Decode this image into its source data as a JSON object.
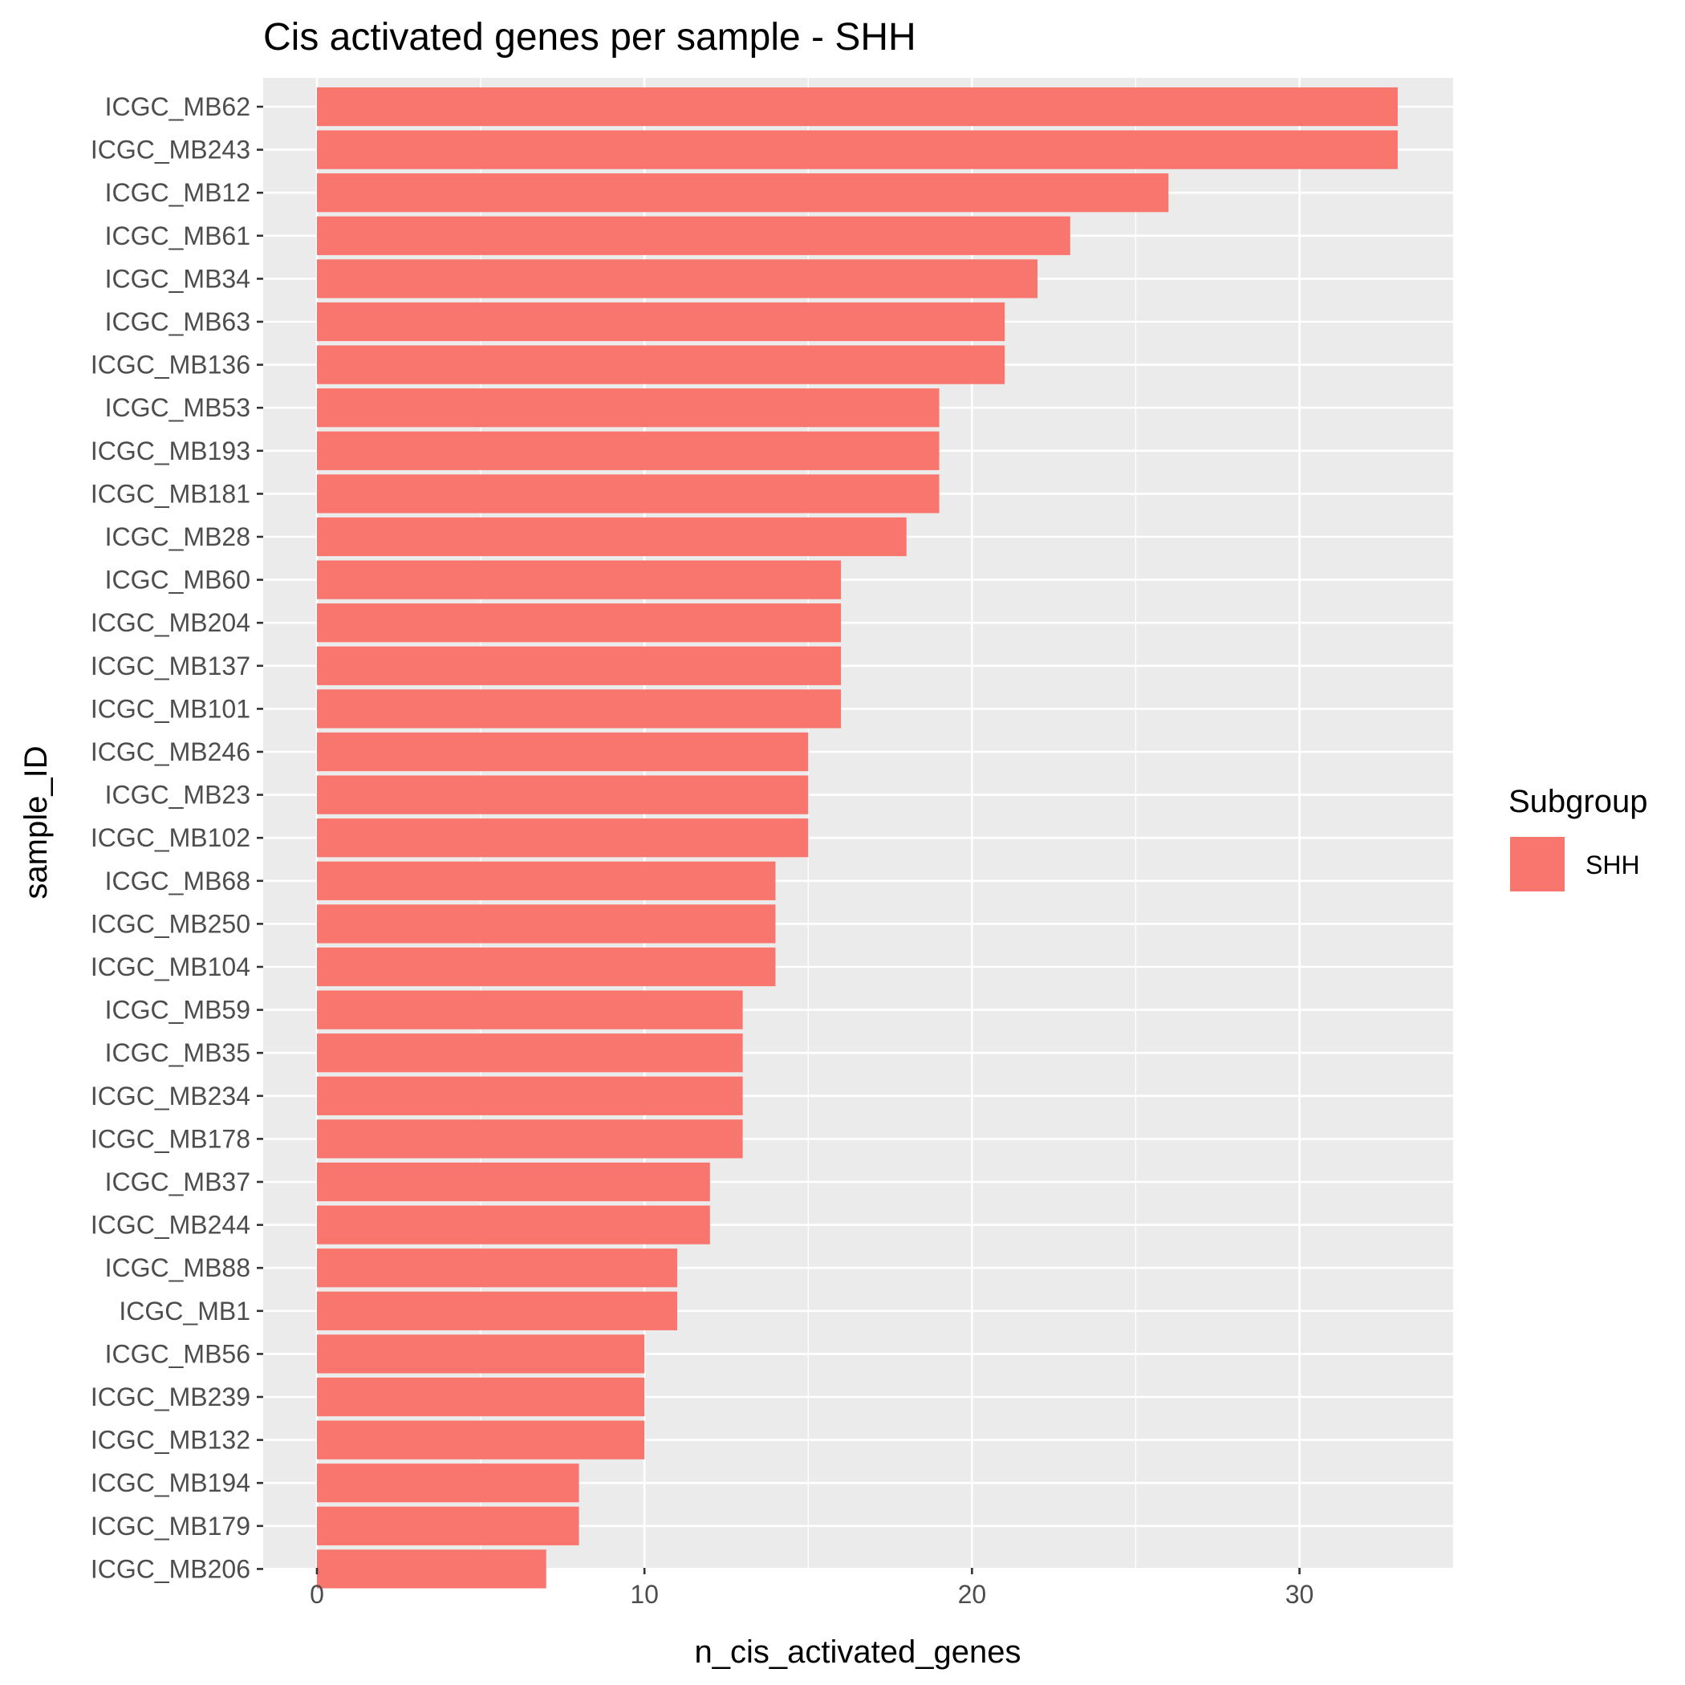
{
  "chart_data": {
    "type": "bar",
    "orientation": "horizontal",
    "title": "Cis activated genes per sample - SHH",
    "xlabel": "n_cis_activated_genes",
    "ylabel": "sample_ID",
    "xlim": [
      0,
      35
    ],
    "x_ticks": [
      0,
      10,
      20,
      30
    ],
    "grid": true,
    "legend": {
      "title": "Subgroup",
      "position": "right",
      "entries": [
        {
          "label": "SHH",
          "color": "#F8766D"
        }
      ]
    },
    "categories": [
      "ICGC_MB62",
      "ICGC_MB243",
      "ICGC_MB12",
      "ICGC_MB61",
      "ICGC_MB34",
      "ICGC_MB63",
      "ICGC_MB136",
      "ICGC_MB53",
      "ICGC_MB193",
      "ICGC_MB181",
      "ICGC_MB28",
      "ICGC_MB60",
      "ICGC_MB204",
      "ICGC_MB137",
      "ICGC_MB101",
      "ICGC_MB246",
      "ICGC_MB23",
      "ICGC_MB102",
      "ICGC_MB68",
      "ICGC_MB250",
      "ICGC_MB104",
      "ICGC_MB59",
      "ICGC_MB35",
      "ICGC_MB234",
      "ICGC_MB178",
      "ICGC_MB37",
      "ICGC_MB244",
      "ICGC_MB88",
      "ICGC_MB1",
      "ICGC_MB56",
      "ICGC_MB239",
      "ICGC_MB132",
      "ICGC_MB194",
      "ICGC_MB179",
      "ICGC_MB206"
    ],
    "series": [
      {
        "name": "SHH",
        "values": [
          33,
          33,
          26,
          23,
          22,
          21,
          21,
          19,
          19,
          19,
          18,
          16,
          16,
          16,
          16,
          15,
          15,
          15,
          14,
          14,
          14,
          13,
          13,
          13,
          13,
          12,
          12,
          11,
          11,
          10,
          10,
          10,
          8,
          8,
          7
        ]
      }
    ],
    "colors": {
      "bar": "#F8766D",
      "panel": "#EBEBEB",
      "grid": "#FFFFFF",
      "tick_text": "#4D4D4D",
      "tick": "#333333"
    }
  }
}
